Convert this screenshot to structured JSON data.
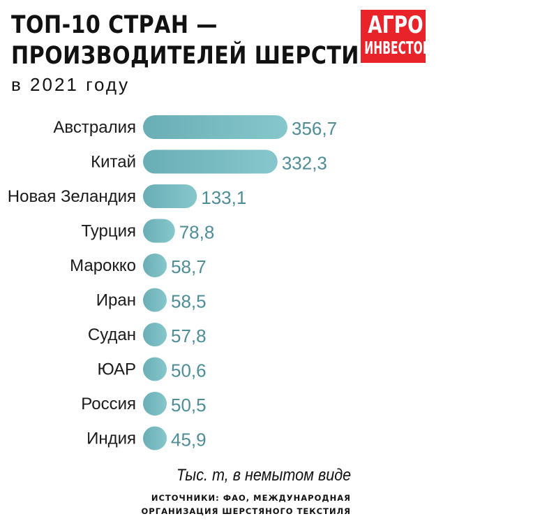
{
  "header": {
    "title_line1": "ТОП-10 СТРАН —",
    "title_line2": "ПРОИЗВОДИТЕЛЕЙ ШЕРСТИ",
    "subtitle": "в 2021 году"
  },
  "logo": {
    "line1": "АГРО",
    "line2": "ИНВЕСТОР",
    "color": "#e8232a"
  },
  "chart_data": {
    "type": "bar",
    "orientation": "horizontal",
    "categories": [
      "Австралия",
      "Китай",
      "Новая Зеландия",
      "Турция",
      "Марокко",
      "Иран",
      "Судан",
      "ЮАР",
      "Россия",
      "Индия"
    ],
    "values": [
      356.7,
      332.3,
      133.1,
      78.8,
      58.7,
      58.5,
      57.8,
      50.6,
      50.5,
      45.9
    ],
    "value_labels": [
      "356,7",
      "332,3",
      "133,1",
      "78,8",
      "58,7",
      "58,5",
      "57,8",
      "50,6",
      "50,5",
      "45,9"
    ],
    "unit_note": "Тыс. т, в немытом виде",
    "bar_color": "#6aaeb5",
    "bar_color_light": "#86c7cb",
    "label_color": "#4f8d96"
  },
  "footer": {
    "sources_line1": "ИСТОЧНИКИ: ФАО, МЕЖДУНАРОДНАЯ",
    "sources_line2": "ОРГАНИЗАЦИЯ ШЕРСТЯНОГО ТЕКСТИЛЯ"
  }
}
